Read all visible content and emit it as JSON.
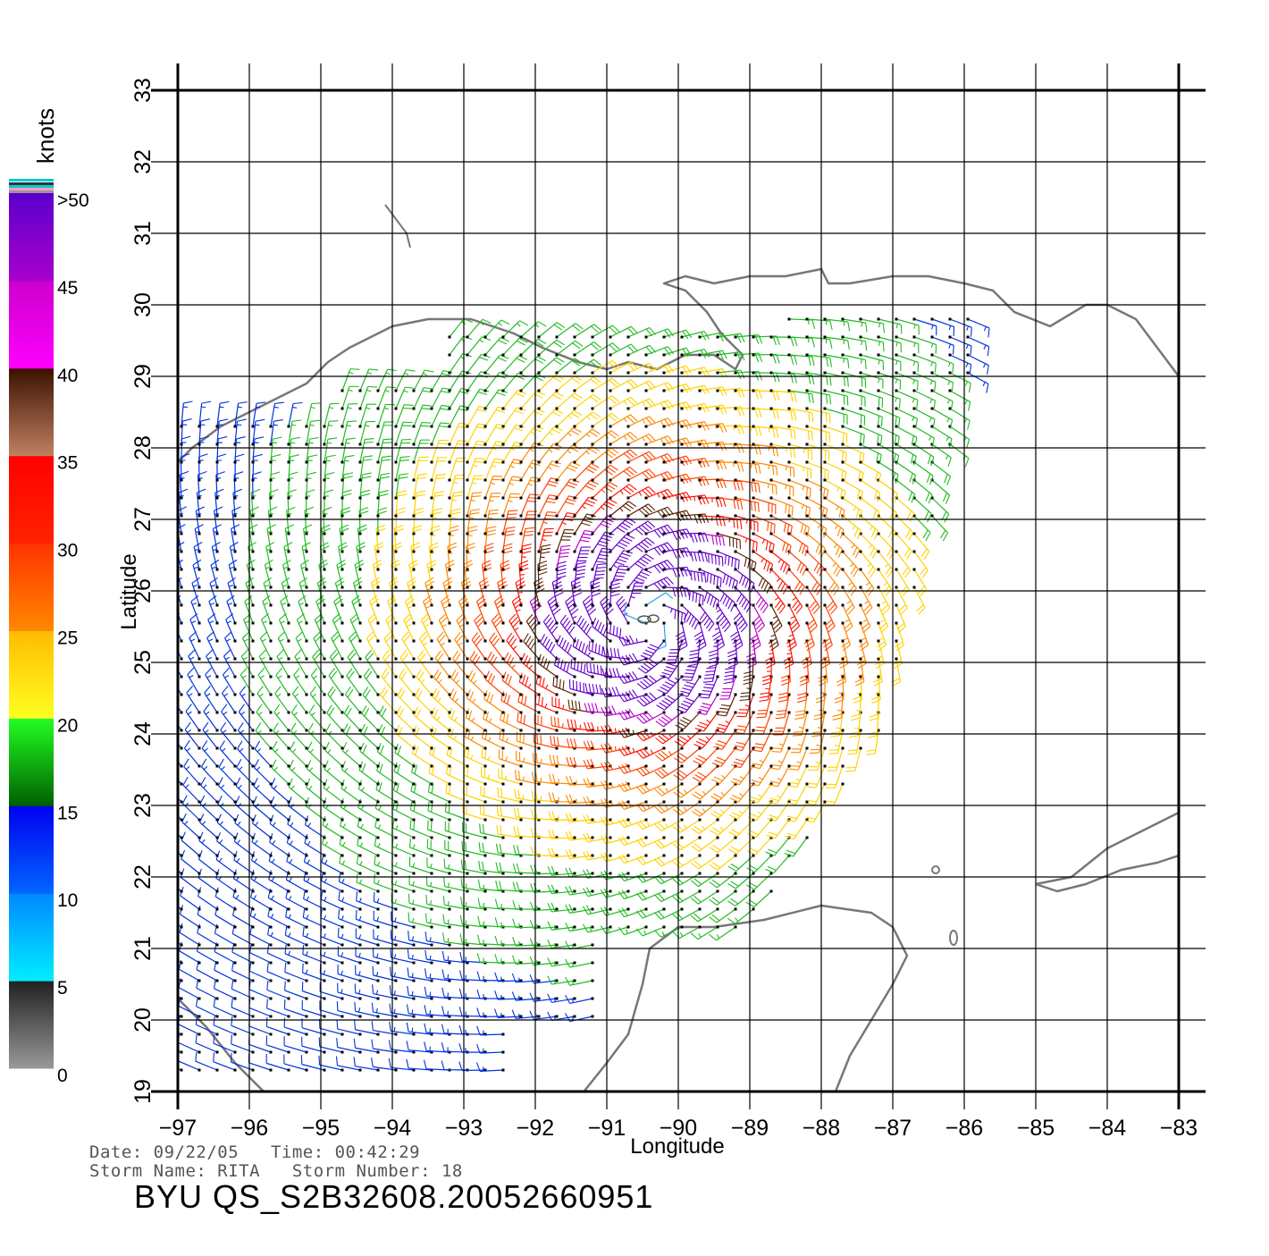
{
  "map": {
    "xlabel": "Longitude",
    "ylabel": "Latitude",
    "lon_range": [
      -97,
      -83
    ],
    "lat_range": [
      19,
      33
    ],
    "lon_ticks": [
      -97,
      -96,
      -95,
      -94,
      -93,
      -92,
      -91,
      -90,
      -89,
      -88,
      -87,
      -86,
      -85,
      -84,
      -83
    ],
    "lat_ticks": [
      19,
      20,
      21,
      22,
      23,
      24,
      25,
      26,
      27,
      28,
      29,
      30,
      31,
      32,
      33
    ],
    "lon_tick_labels": [
      "−97",
      "−96",
      "−95",
      "−94",
      "−93",
      "−92",
      "−91",
      "−90",
      "−89",
      "−88",
      "−87",
      "−86",
      "−85",
      "−84",
      "−83"
    ],
    "lat_tick_labels": [
      "19",
      "20",
      "21",
      "22",
      "23",
      "24",
      "25",
      "26",
      "27",
      "28",
      "29",
      "30",
      "31",
      "32",
      "33"
    ],
    "grid": true,
    "storm_center": [
      -90.4,
      25.6
    ],
    "coast_color": "#777777"
  },
  "colorbar": {
    "unit": "knots",
    "labels": [
      ">50",
      "45",
      "40",
      "35",
      "30",
      "25",
      "20",
      "15",
      "10",
      "5",
      "0"
    ],
    "label_values": [
      50,
      45,
      40,
      35,
      30,
      25,
      20,
      15,
      10,
      5,
      0
    ]
  },
  "footer": {
    "line1": "Date: 09/22/05   Time: 00:42:29",
    "line2": "Storm Name: RITA   Storm Number: 18",
    "title": "BYU QS_S2B32608.20052660951"
  }
}
